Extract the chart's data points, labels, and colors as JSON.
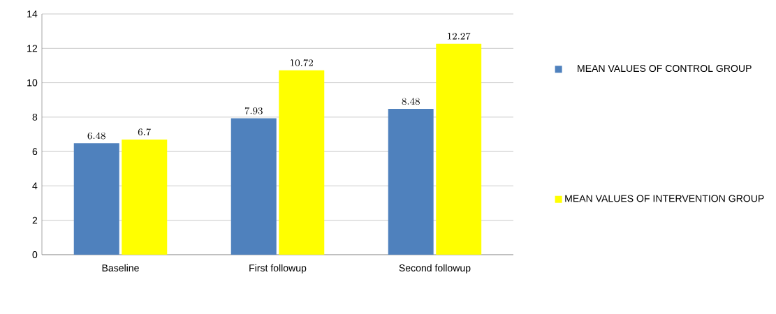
{
  "chart_data": {
    "type": "bar",
    "categories": [
      "Baseline",
      "First followup",
      "Second followup"
    ],
    "series": [
      {
        "name": "MEAN VALUES OF CONTROL GROUP",
        "color": "#4f81bd",
        "values": [
          6.48,
          7.93,
          8.48
        ]
      },
      {
        "name": "MEAN VALUES OF INTERVENTION  GROUP",
        "color": "#ffff00",
        "values": [
          6.7,
          10.72,
          12.27
        ]
      }
    ],
    "ylim": [
      0,
      14
    ],
    "yticks": [
      0,
      2,
      4,
      6,
      8,
      10,
      12,
      14
    ],
    "grid": "y",
    "legend": "right",
    "data_labels": true
  }
}
